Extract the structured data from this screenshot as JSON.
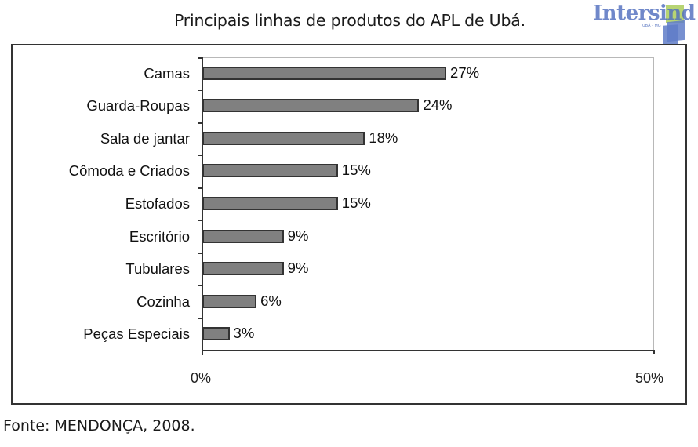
{
  "header": {
    "title": "Principais linhas de produtos do APL de Ubá.",
    "logo": {
      "text": "Intersind",
      "subtext": "UBÁ - MG"
    }
  },
  "footer": {
    "source": "Fonte: MENDONÇA, 2008."
  },
  "colors": {
    "bar_fill": "#808080",
    "bar_border": "#333333",
    "frame": "#333333",
    "logo_blue": "#506ebe",
    "logo_green": "#aacd5a"
  },
  "chart_data": {
    "type": "bar",
    "orientation": "horizontal",
    "title": "Principais linhas de produtos do APL de Ubá.",
    "categories": [
      "Camas",
      "Guarda-Roupas",
      "Sala de jantar",
      "Cômoda e Criados",
      "Estofados",
      "Escritório",
      "Tubulares",
      "Cozinha",
      "Peças Especiais"
    ],
    "values": [
      27,
      24,
      18,
      15,
      15,
      9,
      9,
      6,
      3
    ],
    "value_labels": [
      "27%",
      "24%",
      "18%",
      "15%",
      "15%",
      "9%",
      "9%",
      "6%",
      "3%"
    ],
    "xlabel": "",
    "ylabel": "",
    "xlim": [
      0,
      50
    ],
    "x_tick_labels": [
      "0%",
      "50%"
    ],
    "grid": false,
    "legend": null,
    "source": "Fonte: MENDONÇA, 2008."
  }
}
